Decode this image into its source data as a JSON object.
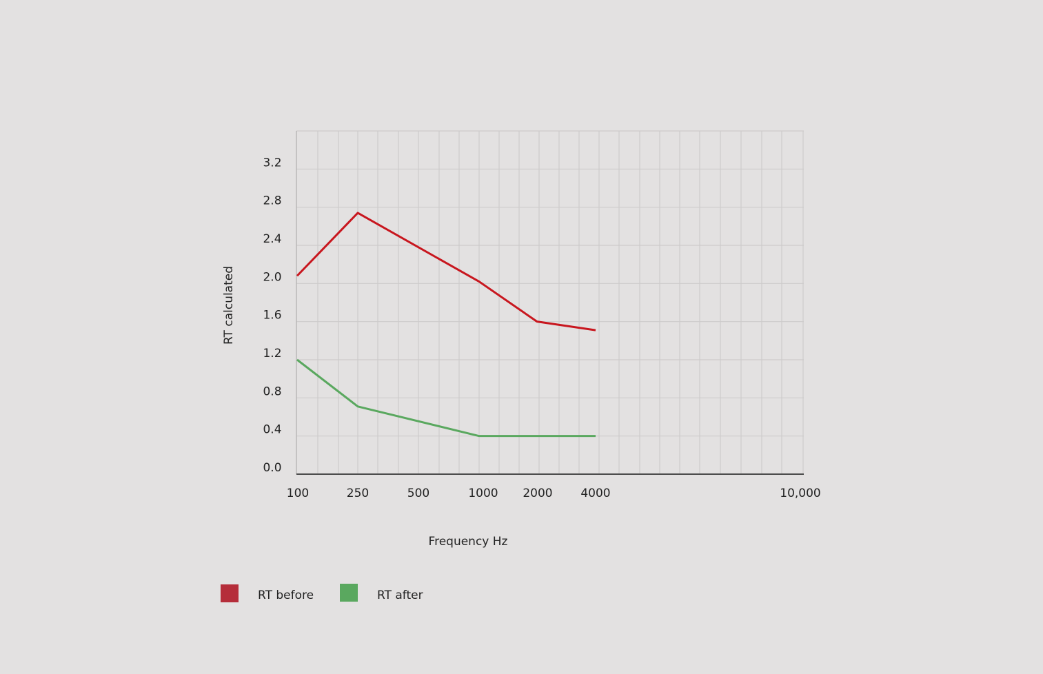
{
  "chart_data": {
    "type": "line",
    "title": "",
    "xlabel": "Frequency Hz",
    "ylabel": "RT calculated",
    "x_ticks": [
      "100",
      "250",
      "500",
      "1000",
      "2000",
      "4000",
      "10,000"
    ],
    "y_ticks": [
      "0.0",
      "0.4",
      "0.8",
      "1.2",
      "1.6",
      "2.0",
      "2.4",
      "2.8",
      "3.2"
    ],
    "ylim": [
      0,
      3.6
    ],
    "grid": true,
    "legend_position": "bottom-left",
    "series": [
      {
        "name": "RT before",
        "color": "#c8161e",
        "legend_color": "#b52d3a",
        "points": [
          {
            "x": "100",
            "y": 2.08
          },
          {
            "x": "250",
            "y": 2.74
          },
          {
            "x": "1000",
            "y": 2.02
          },
          {
            "x": "2000",
            "y": 1.6
          },
          {
            "x": "4000",
            "y": 1.51
          }
        ]
      },
      {
        "name": "RT after",
        "color": "#5aa85f",
        "legend_color": "#5aa85f",
        "points": [
          {
            "x": "100",
            "y": 1.2
          },
          {
            "x": "250",
            "y": 0.71
          },
          {
            "x": "1000",
            "y": 0.4
          },
          {
            "x": "2000",
            "y": 0.4
          },
          {
            "x": "4000",
            "y": 0.4
          }
        ]
      }
    ]
  }
}
